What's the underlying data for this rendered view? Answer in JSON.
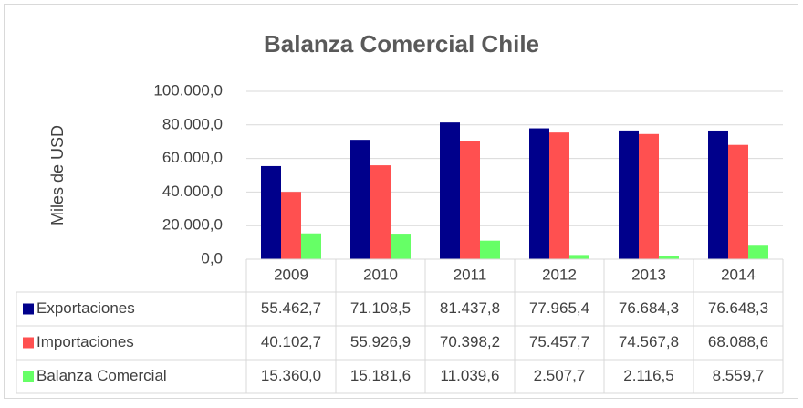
{
  "chart_data": {
    "type": "bar",
    "title": "Balanza Comercial Chile",
    "y_label": "Miles  de USD",
    "categories": [
      "2009",
      "2010",
      "2011",
      "2012",
      "2013",
      "2014"
    ],
    "series": [
      {
        "name": "Exportaciones",
        "color": "#00008b",
        "values": [
          55462.7,
          71108.5,
          81437.8,
          77965.4,
          76684.3,
          76648.3
        ],
        "value_labels": [
          "55.462,7",
          "71.108,5",
          "81.437,8",
          "77.965,4",
          "76.684,3",
          "76.648,3"
        ]
      },
      {
        "name": "Importaciones",
        "color": "#ff5050",
        "values": [
          40102.7,
          55926.9,
          70398.2,
          75457.7,
          74567.8,
          68088.6
        ],
        "value_labels": [
          "40.102,7",
          "55.926,9",
          "70.398,2",
          "75.457,7",
          "74.567,8",
          "68.088,6"
        ]
      },
      {
        "name": "Balanza Comercial",
        "color": "#66ff66",
        "values": [
          15360.0,
          15181.6,
          11039.6,
          2507.7,
          2116.5,
          8559.7
        ],
        "value_labels": [
          "15.360,0",
          "15.181,6",
          "11.039,6",
          "2.507,7",
          "2.116,5",
          "8.559,7"
        ]
      }
    ],
    "ylim": [
      0,
      100000
    ],
    "yticks": [
      {
        "value": 0,
        "label": "0,0"
      },
      {
        "value": 20000,
        "label": "20.000,0"
      },
      {
        "value": 40000,
        "label": "40.000,0"
      },
      {
        "value": 60000,
        "label": "60.000,0"
      },
      {
        "value": 80000,
        "label": "80.000,0"
      },
      {
        "value": 100000,
        "label": "100.000,0"
      }
    ],
    "grid": true
  }
}
